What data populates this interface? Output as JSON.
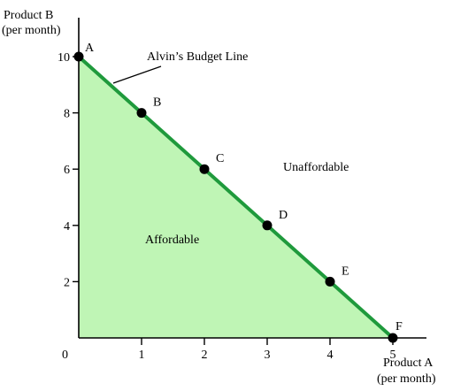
{
  "chart_data": {
    "type": "line",
    "title": "",
    "x_axis": {
      "label_line1": "Product A",
      "label_line2": "(per month)",
      "range": [
        0,
        5
      ],
      "ticks": [
        "1",
        "2",
        "3",
        "4",
        "5"
      ],
      "origin_label": "0"
    },
    "y_axis": {
      "label_line1": "Product B",
      "label_line2": "(per month)",
      "range": [
        0,
        10
      ],
      "ticks": [
        "2",
        "4",
        "6",
        "8",
        "10"
      ]
    },
    "series": [
      {
        "name": "Alvin’s Budget Line",
        "color": "#1f9a3c",
        "points": [
          {
            "label": "A",
            "x": 0,
            "y": 10
          },
          {
            "label": "B",
            "x": 1,
            "y": 8
          },
          {
            "label": "C",
            "x": 2,
            "y": 6
          },
          {
            "label": "D",
            "x": 3,
            "y": 4
          },
          {
            "label": "E",
            "x": 4,
            "y": 2
          },
          {
            "label": "F",
            "x": 5,
            "y": 0
          }
        ]
      }
    ],
    "regions": {
      "affordable_label": "Affordable",
      "unaffordable_label": "Unaffordable",
      "fill_color": "#bff5b5"
    },
    "annotation": "Alvin’s Budget Line",
    "grid": false,
    "legend": "none"
  }
}
